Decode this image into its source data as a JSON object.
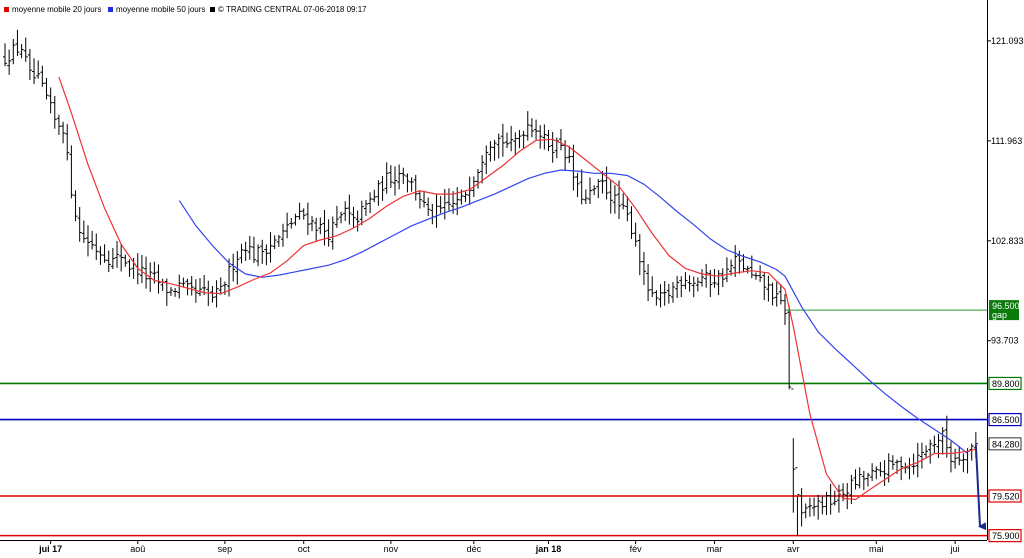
{
  "legend": [
    {
      "label": "moyenne mobile 20 jours",
      "color": "#e00000"
    },
    {
      "label": "moyenne mobile 50 jours",
      "color": "#1f2fe0"
    },
    {
      "label": "© TRADING CENTRAL 07-06-2018 09:17",
      "color": "#000000"
    }
  ],
  "chart_data": {
    "type": "ohlc",
    "y_range": [
      75.5,
      123.0
    ],
    "x_range": [
      0,
      235
    ],
    "y_ticks": [
      {
        "value": 121.093,
        "label": "121.093"
      },
      {
        "value": 111.963,
        "label": "111.963"
      },
      {
        "value": 102.833,
        "label": "102.833"
      },
      {
        "value": 93.703,
        "label": "93.703"
      }
    ],
    "x_ticks": [
      {
        "i": 11,
        "label": "jui 17",
        "bold": true
      },
      {
        "i": 32,
        "label": "aoû",
        "bold": false
      },
      {
        "i": 53,
        "label": "sep",
        "bold": false
      },
      {
        "i": 72,
        "label": "oct",
        "bold": false
      },
      {
        "i": 93,
        "label": "nov",
        "bold": false
      },
      {
        "i": 113,
        "label": "déc",
        "bold": false
      },
      {
        "i": 131,
        "label": "jan 18",
        "bold": true
      },
      {
        "i": 152,
        "label": "fév",
        "bold": false
      },
      {
        "i": 171,
        "label": "mar",
        "bold": false
      },
      {
        "i": 190,
        "label": "avr",
        "bold": false
      },
      {
        "i": 210,
        "label": "mai",
        "bold": false
      },
      {
        "i": 229,
        "label": "jui",
        "bold": false
      }
    ],
    "closes": [
      [
        0,
        119.5
      ],
      [
        2,
        120.2
      ],
      [
        4,
        120.5
      ],
      [
        6,
        117.9
      ],
      [
        8,
        117.5
      ],
      [
        10,
        115.9
      ],
      [
        12,
        113.8
      ],
      [
        14,
        113.2
      ],
      [
        16,
        107.5
      ],
      [
        18,
        103.5
      ],
      [
        20,
        102.8
      ],
      [
        22,
        102.1
      ],
      [
        24,
        101.5
      ],
      [
        26,
        101.0
      ],
      [
        28,
        101.5
      ],
      [
        30,
        100.5
      ],
      [
        32,
        100.2
      ],
      [
        34,
        99.6
      ],
      [
        36,
        99.4
      ],
      [
        38,
        98.6
      ],
      [
        40,
        98.2
      ],
      [
        42,
        98.7
      ],
      [
        44,
        98.3
      ],
      [
        46,
        98.0
      ],
      [
        48,
        98.1
      ],
      [
        50,
        97.7
      ],
      [
        52,
        98.2
      ],
      [
        54,
        100.0
      ],
      [
        56,
        101.5
      ],
      [
        58,
        102.5
      ],
      [
        60,
        101.5
      ],
      [
        62,
        102.0
      ],
      [
        64,
        102.5
      ],
      [
        66,
        103.0
      ],
      [
        68,
        104.0
      ],
      [
        70,
        105.0
      ],
      [
        72,
        105.2
      ],
      [
        74,
        104.5
      ],
      [
        76,
        104.0
      ],
      [
        78,
        103.5
      ],
      [
        80,
        104.5
      ],
      [
        82,
        105.5
      ],
      [
        84,
        104.5
      ],
      [
        86,
        105.5
      ],
      [
        88,
        106.5
      ],
      [
        90,
        107.5
      ],
      [
        92,
        108.5
      ],
      [
        94,
        108.8
      ],
      [
        96,
        109.2
      ],
      [
        98,
        108.0
      ],
      [
        100,
        106.8
      ],
      [
        102,
        105.2
      ],
      [
        104,
        105.4
      ],
      [
        106,
        105.8
      ],
      [
        108,
        106.2
      ],
      [
        110,
        106.5
      ],
      [
        112,
        108.0
      ],
      [
        114,
        109.5
      ],
      [
        116,
        111.5
      ],
      [
        118,
        112.3
      ],
      [
        120,
        112.0
      ],
      [
        122,
        111.5
      ],
      [
        124,
        112.5
      ],
      [
        126,
        113.5
      ],
      [
        128,
        113.2
      ],
      [
        130,
        112.0
      ],
      [
        132,
        111.5
      ],
      [
        134,
        111.8
      ],
      [
        136,
        110.0
      ],
      [
        138,
        107.5
      ],
      [
        140,
        106.5
      ],
      [
        142,
        107.5
      ],
      [
        144,
        108.0
      ],
      [
        146,
        107.0
      ],
      [
        148,
        106.0
      ],
      [
        150,
        105.0
      ],
      [
        152,
        103.0
      ],
      [
        154,
        99.5
      ],
      [
        156,
        97.5
      ],
      [
        158,
        97.5
      ],
      [
        160,
        98.0
      ],
      [
        162,
        99.0
      ],
      [
        164,
        99.5
      ],
      [
        166,
        99.0
      ],
      [
        168,
        99.5
      ],
      [
        170,
        99.2
      ],
      [
        172,
        99.5
      ],
      [
        174,
        100.0
      ],
      [
        176,
        101.0
      ],
      [
        178,
        100.5
      ],
      [
        180,
        99.5
      ],
      [
        182,
        99.0
      ],
      [
        184,
        98.5
      ],
      [
        186,
        97.5
      ],
      [
        188,
        96.5
      ],
      [
        190,
        82.0
      ],
      [
        192,
        77.5
      ],
      [
        194,
        78.5
      ],
      [
        196,
        78.8
      ],
      [
        198,
        79.0
      ],
      [
        200,
        79.2
      ],
      [
        202,
        79.8
      ],
      [
        204,
        80.5
      ],
      [
        206,
        81.0
      ],
      [
        208,
        81.3
      ],
      [
        210,
        81.5
      ],
      [
        212,
        82.0
      ],
      [
        214,
        82.3
      ],
      [
        216,
        82.6
      ],
      [
        218,
        82.4
      ],
      [
        220,
        83.0
      ],
      [
        222,
        83.8
      ],
      [
        224,
        84.5
      ],
      [
        226,
        85.0
      ],
      [
        228,
        83.0
      ],
      [
        230,
        83.2
      ],
      [
        232,
        83.6
      ],
      [
        234,
        84.28
      ]
    ],
    "ma20": [
      [
        13,
        117.8
      ],
      [
        16,
        114.5
      ],
      [
        20,
        109.8
      ],
      [
        24,
        105.8
      ],
      [
        28,
        102.5
      ],
      [
        32,
        100.3
      ],
      [
        36,
        99.2
      ],
      [
        40,
        98.9
      ],
      [
        44,
        98.5
      ],
      [
        48,
        98.1
      ],
      [
        52,
        98.0
      ],
      [
        56,
        98.6
      ],
      [
        60,
        99.3
      ],
      [
        64,
        99.9
      ],
      [
        68,
        101.0
      ],
      [
        72,
        102.4
      ],
      [
        76,
        102.9
      ],
      [
        80,
        103.3
      ],
      [
        84,
        104.0
      ],
      [
        88,
        104.9
      ],
      [
        92,
        106.0
      ],
      [
        96,
        106.9
      ],
      [
        100,
        107.4
      ],
      [
        104,
        107.1
      ],
      [
        108,
        107.1
      ],
      [
        112,
        107.5
      ],
      [
        116,
        108.6
      ],
      [
        120,
        109.7
      ],
      [
        124,
        111.0
      ],
      [
        128,
        112.0
      ],
      [
        132,
        112.1
      ],
      [
        136,
        111.4
      ],
      [
        140,
        110.2
      ],
      [
        144,
        109.0
      ],
      [
        148,
        107.8
      ],
      [
        152,
        105.8
      ],
      [
        156,
        103.5
      ],
      [
        160,
        101.5
      ],
      [
        164,
        100.3
      ],
      [
        168,
        99.8
      ],
      [
        172,
        99.6
      ],
      [
        176,
        99.9
      ],
      [
        180,
        100.1
      ],
      [
        184,
        99.9
      ],
      [
        188,
        98.4
      ],
      [
        190,
        95.0
      ],
      [
        194,
        87.0
      ],
      [
        198,
        81.5
      ],
      [
        202,
        79.3
      ],
      [
        205,
        79.2
      ],
      [
        208,
        80.0
      ],
      [
        212,
        81.0
      ],
      [
        216,
        82.0
      ],
      [
        220,
        82.6
      ],
      [
        224,
        83.4
      ],
      [
        228,
        83.4
      ],
      [
        232,
        83.6
      ],
      [
        234,
        83.8
      ]
    ],
    "ma50": [
      [
        42,
        106.5
      ],
      [
        46,
        104.2
      ],
      [
        50,
        102.4
      ],
      [
        54,
        100.8
      ],
      [
        58,
        99.8
      ],
      [
        62,
        99.5
      ],
      [
        66,
        99.7
      ],
      [
        70,
        100.0
      ],
      [
        74,
        100.3
      ],
      [
        78,
        100.6
      ],
      [
        82,
        101.1
      ],
      [
        86,
        101.8
      ],
      [
        90,
        102.6
      ],
      [
        94,
        103.4
      ],
      [
        98,
        104.2
      ],
      [
        102,
        104.8
      ],
      [
        106,
        105.4
      ],
      [
        110,
        105.9
      ],
      [
        114,
        106.5
      ],
      [
        118,
        107.1
      ],
      [
        122,
        107.8
      ],
      [
        126,
        108.5
      ],
      [
        130,
        109.0
      ],
      [
        134,
        109.3
      ],
      [
        138,
        109.2
      ],
      [
        142,
        109.0
      ],
      [
        146,
        109.0
      ],
      [
        150,
        108.8
      ],
      [
        154,
        108.0
      ],
      [
        158,
        106.8
      ],
      [
        162,
        105.5
      ],
      [
        166,
        104.3
      ],
      [
        170,
        103.0
      ],
      [
        174,
        102.0
      ],
      [
        178,
        101.4
      ],
      [
        182,
        100.9
      ],
      [
        186,
        100.2
      ],
      [
        188,
        99.6
      ],
      [
        192,
        96.8
      ],
      [
        196,
        94.5
      ],
      [
        200,
        93.0
      ],
      [
        204,
        91.6
      ],
      [
        208,
        90.2
      ],
      [
        212,
        88.9
      ],
      [
        216,
        87.7
      ],
      [
        220,
        86.6
      ],
      [
        224,
        85.6
      ],
      [
        228,
        84.6
      ],
      [
        232,
        83.4
      ]
    ],
    "gap_line": {
      "from_i": 188,
      "value": 96.5
    },
    "levels": [
      {
        "value": 89.8,
        "label": "89.800",
        "color": "#007a00"
      },
      {
        "value": 86.5,
        "label": "86.500",
        "color": "#0000c0"
      },
      {
        "value": 79.52,
        "label": "79.520",
        "color": "#e00000"
      },
      {
        "value": 75.9,
        "label": "75.900",
        "color": "#e00000"
      }
    ],
    "gap_tag": {
      "value": 96.5,
      "label": "96.500",
      "sublabel": "gap",
      "color": "#0a7a0a"
    },
    "last_tag": {
      "value": 84.28,
      "label": "84.280"
    },
    "arrow": {
      "from": [
        234,
        84.2
      ],
      "to": [
        235,
        76.0
      ],
      "color": "#1a2a8c"
    }
  }
}
